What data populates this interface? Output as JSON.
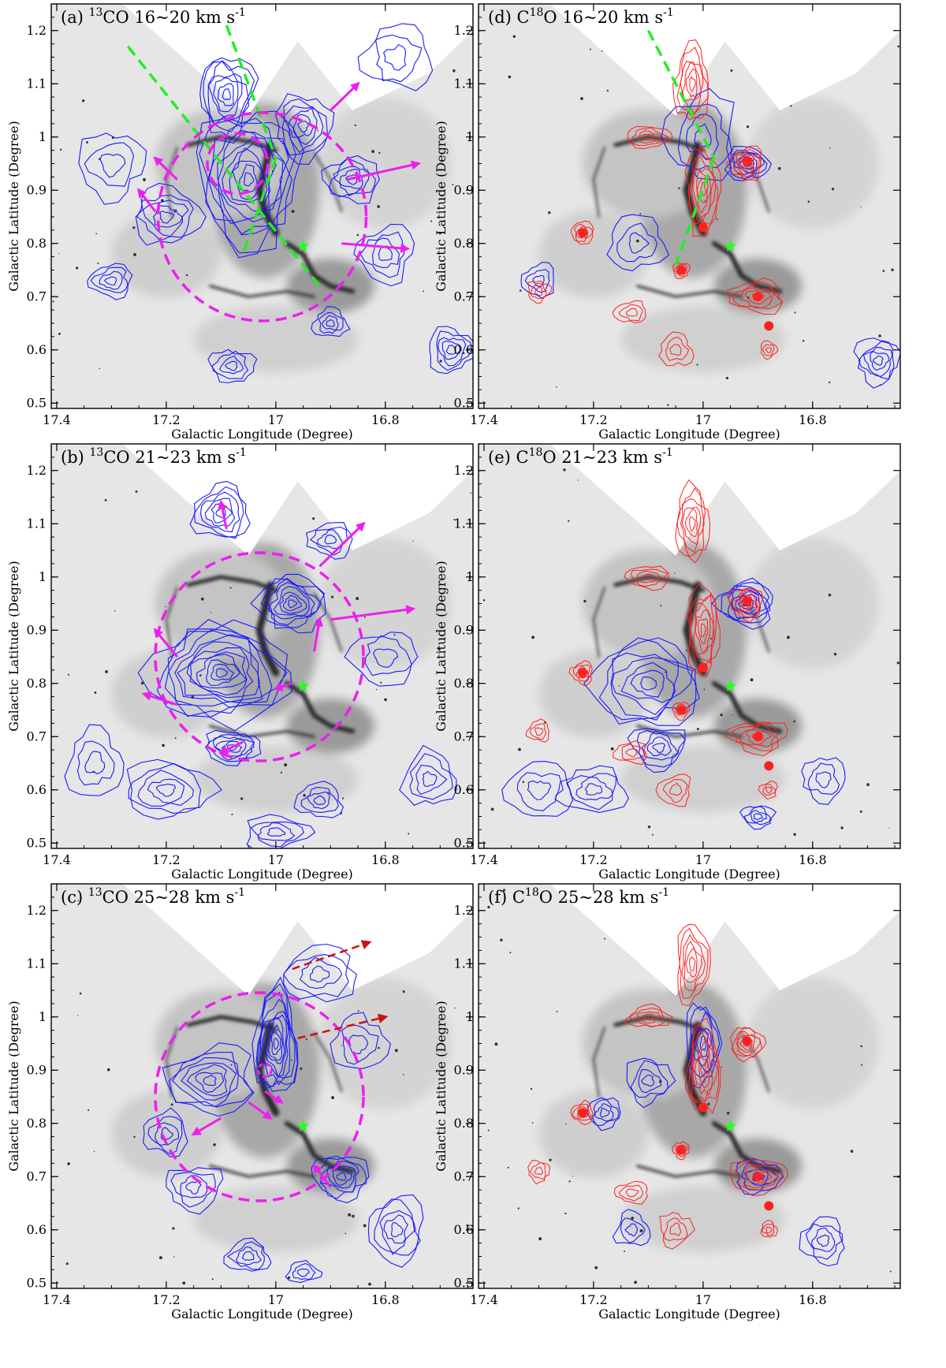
{
  "figure": {
    "panels": [
      {
        "id": "a",
        "title": {
          "prefix": "(a) ",
          "sup": "13",
          "mol": "CO 16~20 km s",
          "exp": "-1"
        },
        "type": "13CO",
        "lines": true,
        "big_circle": true,
        "small_circle": "upper",
        "star": true,
        "arrows": "a"
      },
      {
        "id": "b",
        "title": {
          "prefix": "(b) ",
          "sup": "13",
          "mol": "CO 21~23 km s",
          "exp": "-1"
        },
        "type": "13CO",
        "lines": false,
        "big_circle": true,
        "small_circle": "",
        "star": true,
        "arrows": "b"
      },
      {
        "id": "c",
        "title": {
          "prefix": "(c) ",
          "sup": "13",
          "mol": "CO 25~28 km s",
          "exp": "-1"
        },
        "type": "13CO",
        "lines": false,
        "big_circle": true,
        "small_circle": "tiny",
        "star": true,
        "arrows": "c"
      },
      {
        "id": "d",
        "title": {
          "prefix": "(d) C",
          "sup": "18",
          "mol": "O 16~20 km s",
          "exp": "-1"
        },
        "type": "C18O",
        "lines": true,
        "big_circle": false,
        "small_circle": "",
        "star": true,
        "arrows": ""
      },
      {
        "id": "e",
        "title": {
          "prefix": "(e) C",
          "sup": "18",
          "mol": "O 21~23 km s",
          "exp": "-1"
        },
        "type": "C18O",
        "lines": false,
        "big_circle": false,
        "small_circle": "",
        "star": true,
        "arrows": ""
      },
      {
        "id": "f",
        "title": {
          "prefix": "(f) C",
          "sup": "18",
          "mol": "O 25~28 km s",
          "exp": "-1"
        },
        "type": "C18O",
        "lines": false,
        "big_circle": false,
        "small_circle": "",
        "star": true,
        "arrows": ""
      }
    ],
    "x_axis": {
      "label": "Galactic Longitude (Degree)",
      "ticks": [
        "17.4",
        "17.2",
        "17",
        "16.8"
      ],
      "tick_values": [
        17.4,
        17.2,
        17.0,
        16.8
      ],
      "range": [
        17.41,
        16.64
      ]
    },
    "y_axis": {
      "label": "Galactic Latitude (Degree)",
      "ticks": [
        "0.5",
        "0.6",
        "0.7",
        "0.8",
        "0.9",
        "1",
        "1.1",
        "1.2"
      ],
      "tick_values": [
        0.5,
        0.6,
        0.7,
        0.8,
        0.9,
        1.0,
        1.1,
        1.2
      ],
      "range": [
        0.49,
        1.25
      ]
    },
    "colors": {
      "c13": "#1a1aff",
      "c18": "#ff2020",
      "circle": "#ee1fee",
      "line": "#22ee22",
      "star": "#22ff22",
      "dark_arrow": "#cc1111"
    }
  }
}
